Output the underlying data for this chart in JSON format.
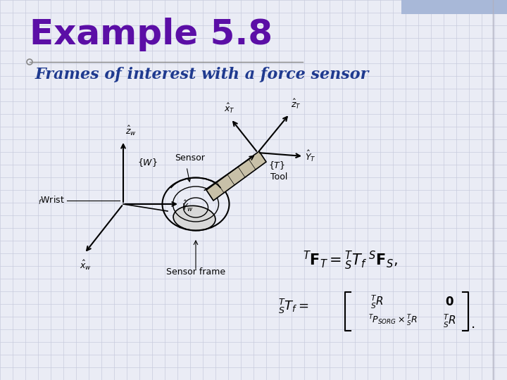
{
  "title": "Example 5.8",
  "subtitle": "Frames of interest with a force sensor",
  "title_color": "#5B0EA6",
  "subtitle_color": "#1F3A8F",
  "bg_color": "#EAECF5",
  "grid_color": "#C8CCDE",
  "title_fontsize": 36,
  "subtitle_fontsize": 16,
  "top_bar_color": "#A8B8D8",
  "right_line_color": "#B0B0C0"
}
